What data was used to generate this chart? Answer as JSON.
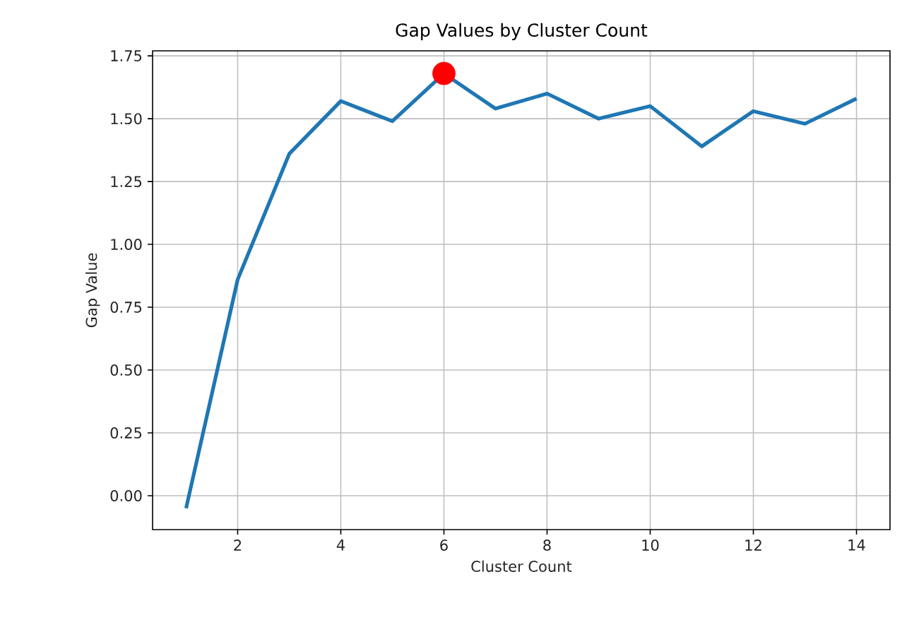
{
  "chart_data": {
    "type": "line",
    "title": "Gap Values by Cluster Count",
    "xlabel": "Cluster Count",
    "ylabel": "Gap Value",
    "xlim": [
      0.35,
      14.65
    ],
    "ylim": [
      -0.135,
      1.77
    ],
    "xticks": [
      2,
      4,
      6,
      8,
      10,
      12,
      14
    ],
    "yticks": [
      {
        "value": 0,
        "label": "0.00"
      },
      {
        "value": 0.25,
        "label": "0.25"
      },
      {
        "value": 0.5,
        "label": "0.50"
      },
      {
        "value": 0.75,
        "label": "0.75"
      },
      {
        "value": 1,
        "label": "1.00"
      },
      {
        "value": 1.25,
        "label": "1.25"
      },
      {
        "value": 1.5,
        "label": "1.50"
      },
      {
        "value": 1.75,
        "label": "1.75"
      }
    ],
    "grid": true,
    "marker": "none",
    "series": [
      {
        "color": "#1f77b4",
        "x": [
          1,
          2,
          3,
          4,
          5,
          6,
          7,
          8,
          9,
          10,
          11,
          12,
          13,
          14
        ],
        "values": [
          -0.05,
          0.86,
          1.36,
          1.57,
          1.49,
          1.68,
          1.54,
          1.6,
          1.5,
          1.55,
          1.39,
          1.53,
          1.48,
          1.58
        ]
      },
      {
        "type": "scatter",
        "color": "#ff0000",
        "marker": "circle",
        "x": [
          6
        ],
        "values": [
          1.68
        ]
      }
    ]
  }
}
